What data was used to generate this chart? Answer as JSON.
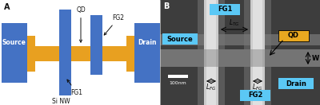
{
  "panel_A_bg": "#ffffff",
  "blue": "#4472c4",
  "gold": "#e8a020",
  "cyan_label": "#5bc8f5",
  "gold_label": "#e8a820",
  "text_dark": "#111111",
  "text_white": "#ffffff",
  "panel_A_label": "A",
  "panel_B_label": "B",
  "source_label": "Source",
  "drain_label": "Drain",
  "fg1_label": "FG1",
  "fg2_label": "FG2",
  "qd_label": "QD",
  "sinw_label": "Si NW",
  "w_label": "W",
  "scalebar_label": "100nm",
  "sem_bg": "#4a4a4a",
  "sem_dark": "#3a3a3a",
  "sem_nw": "#7a7a7a",
  "sem_pillar": "#d5d5d5",
  "sem_glow": "#a8a8a8"
}
